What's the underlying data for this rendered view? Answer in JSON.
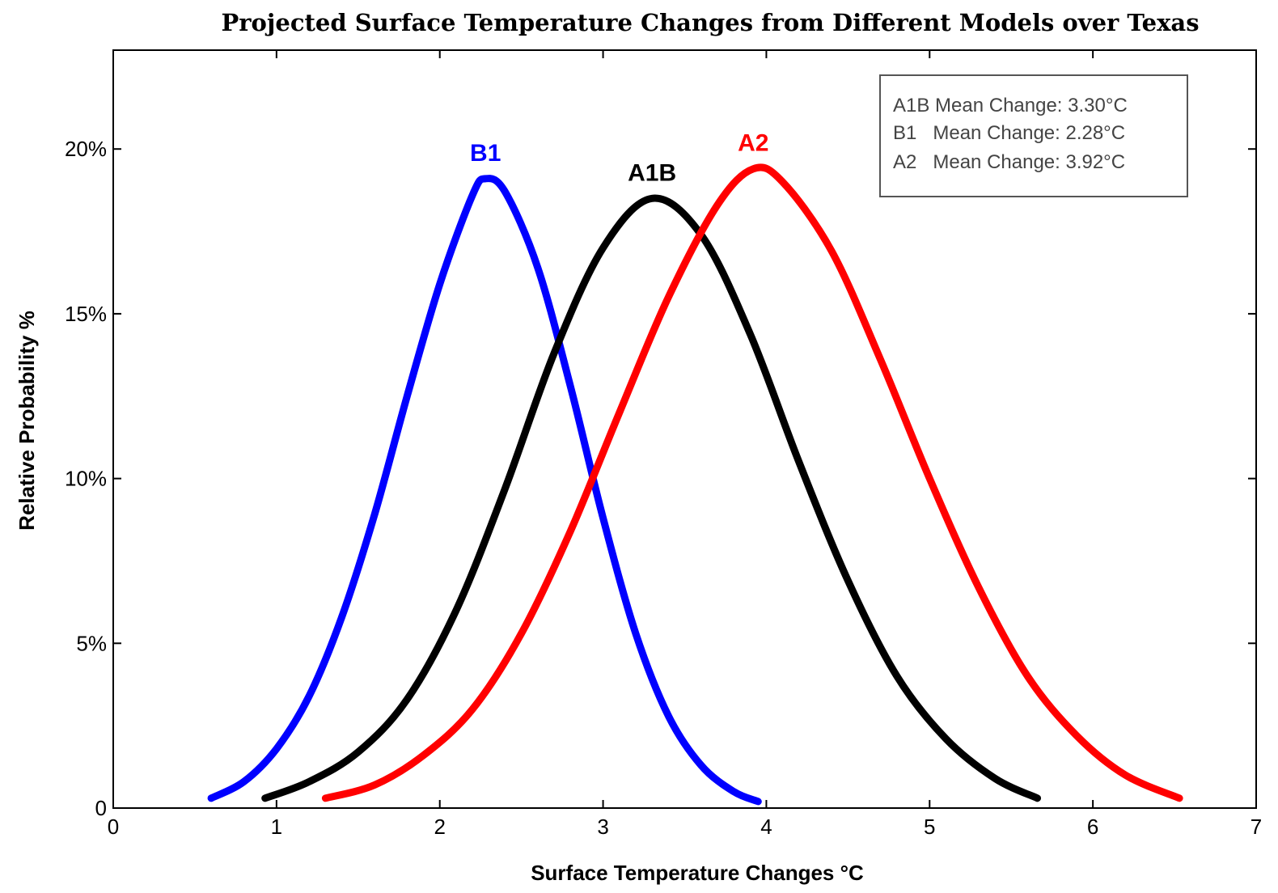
{
  "chart_data": {
    "type": "line",
    "title": "Projected Surface Temperature Changes from Different Models over Texas",
    "xlabel": "Surface Temperature Changes °C",
    "ylabel": "Relative Probability %",
    "xlim": [
      0,
      7
    ],
    "ylim": [
      0,
      23
    ],
    "x_ticks": [
      "0",
      "1",
      "2",
      "3",
      "4",
      "5",
      "6",
      "7"
    ],
    "y_ticks": [
      "0",
      "5%",
      "10%",
      "15%",
      "20%"
    ],
    "y_tick_values": [
      0,
      5,
      10,
      15,
      20
    ],
    "grid": false,
    "legend_box": {
      "position": "top-right",
      "entries": [
        "A1B Mean Change: 3.30°C",
        "B1   Mean Change: 2.28°C",
        "A2   Mean Change: 3.92°C"
      ]
    },
    "series": [
      {
        "name": "B1",
        "color": "#0000ff",
        "x": [
          0.6,
          0.8,
          1.0,
          1.2,
          1.4,
          1.6,
          1.8,
          2.0,
          2.2,
          2.28,
          2.4,
          2.6,
          2.8,
          3.0,
          3.2,
          3.4,
          3.6,
          3.8,
          3.95
        ],
        "y": [
          0.3,
          0.8,
          1.8,
          3.4,
          5.8,
          8.9,
          12.5,
          15.9,
          18.6,
          19.1,
          18.7,
          16.4,
          12.8,
          8.8,
          5.3,
          2.8,
          1.3,
          0.5,
          0.2
        ]
      },
      {
        "name": "A1B",
        "color": "#000000",
        "x": [
          0.93,
          1.2,
          1.5,
          1.8,
          2.1,
          2.4,
          2.7,
          3.0,
          3.3,
          3.6,
          3.9,
          4.2,
          4.5,
          4.8,
          5.1,
          5.4,
          5.66
        ],
        "y": [
          0.3,
          0.8,
          1.7,
          3.3,
          6.0,
          9.7,
          13.8,
          17.0,
          18.5,
          17.4,
          14.4,
          10.5,
          6.9,
          4.0,
          2.1,
          0.9,
          0.3
        ]
      },
      {
        "name": "A2",
        "color": "#ff0000",
        "x": [
          1.3,
          1.6,
          1.9,
          2.2,
          2.5,
          2.8,
          3.1,
          3.4,
          3.7,
          3.92,
          4.1,
          4.4,
          4.7,
          5.0,
          5.3,
          5.6,
          5.9,
          6.2,
          6.53
        ],
        "y": [
          0.3,
          0.7,
          1.6,
          3.0,
          5.3,
          8.4,
          12.0,
          15.5,
          18.3,
          19.4,
          19.0,
          16.9,
          13.6,
          10.0,
          6.7,
          4.0,
          2.2,
          1.0,
          0.3
        ]
      }
    ]
  }
}
